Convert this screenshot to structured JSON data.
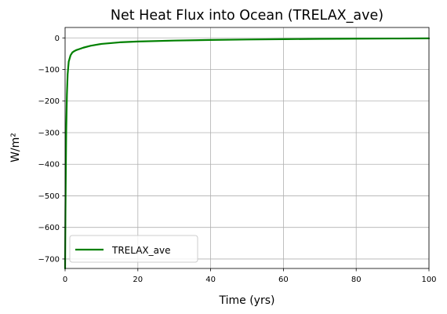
{
  "chart_data": {
    "type": "line",
    "title": "Net Heat Flux into Ocean (TRELAX_ave)",
    "xlabel": "Time (yrs)",
    "ylabel": "W/m²",
    "xlim": [
      0,
      100
    ],
    "ylim": [
      -730,
      33
    ],
    "xticks": [
      0,
      20,
      40,
      60,
      80,
      100
    ],
    "yticks": [
      0,
      -100,
      -200,
      -300,
      -400,
      -500,
      -600,
      -700
    ],
    "xtick_labels": [
      "0",
      "20",
      "40",
      "60",
      "80",
      "100"
    ],
    "ytick_labels": [
      "0",
      "−100",
      "−200",
      "−300",
      "−400",
      "−500",
      "−600",
      "−700"
    ],
    "grid": true,
    "legend_position": "lower-left",
    "series": [
      {
        "name": "TRELAX_ave",
        "color": "#008000",
        "x": [
          0,
          0.1,
          0.2,
          0.3,
          0.5,
          0.7,
          1.0,
          1.5,
          2.0,
          2.5,
          3.0,
          4.0,
          5.0,
          7.0,
          10.0,
          15.0,
          20.0,
          30.0,
          40.0,
          50.0,
          60.0,
          70.0,
          80.0,
          90.0,
          100.0
        ],
        "y": [
          -730,
          -550,
          -420,
          -300,
          -180,
          -115,
          -75,
          -55,
          -46,
          -42,
          -39,
          -35,
          -31,
          -25,
          -19,
          -14,
          -11.5,
          -8.5,
          -6.5,
          -5,
          -4,
          -3,
          -2.5,
          -2,
          -1.5
        ]
      }
    ]
  }
}
